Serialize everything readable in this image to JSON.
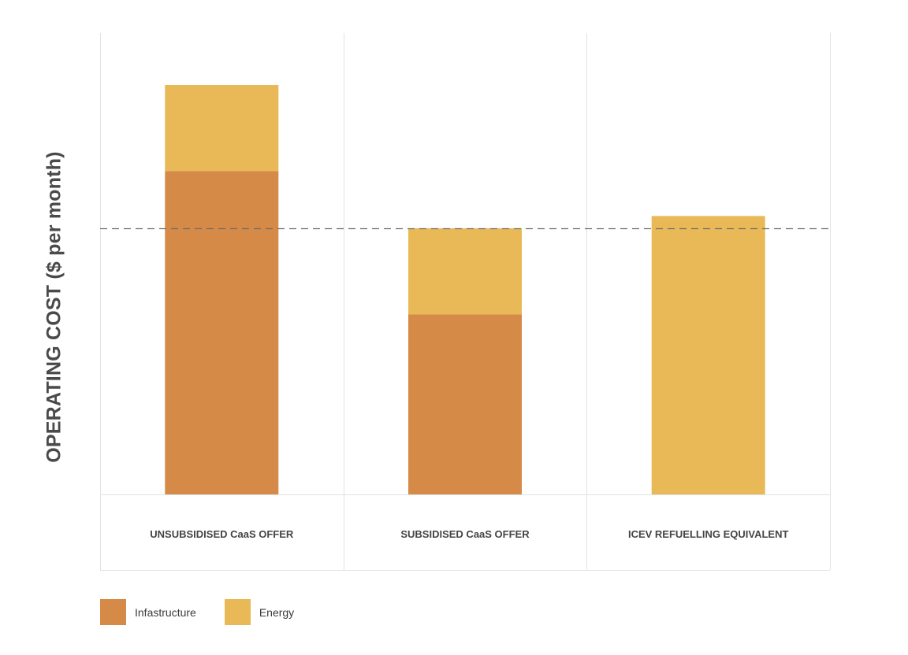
{
  "chart_data": {
    "type": "bar",
    "stacked": true,
    "ylabel": "OPERATING COST ($ per month)",
    "xlabel": "",
    "title": "",
    "categories": [
      "UNSUBSIDISED CaaS OFFER",
      "SUBSIDISED CaaS OFFER",
      "ICEV REFUELLING EQUIVALENT"
    ],
    "series": [
      {
        "name": "Infastructure",
        "color": "#d68a48",
        "values": [
          79,
          44,
          0
        ]
      },
      {
        "name": "Energy",
        "color": "#e9b958",
        "values": [
          21,
          21,
          68
        ]
      }
    ],
    "ylim": [
      0,
      100
    ],
    "reference_line": {
      "value": 65,
      "style": "dashed"
    },
    "legend_position": "bottom-left",
    "grid": false,
    "y_ticks_shown": false
  }
}
